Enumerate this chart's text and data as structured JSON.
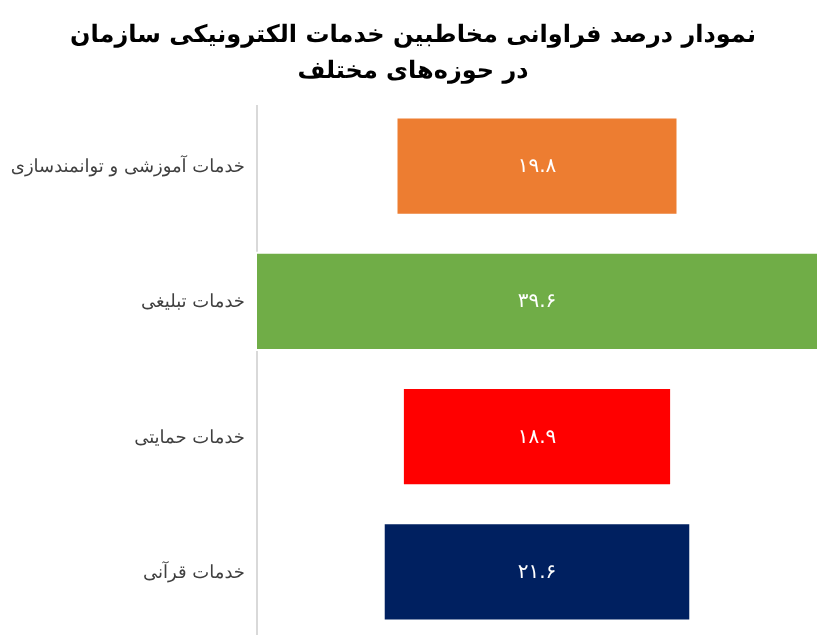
{
  "chart_data": {
    "type": "other",
    "title": [
      "نمودار درصد فراوانی مخاطبین خدمات الکترونیکی سازمان",
      "در حوزه‌های مختلف"
    ],
    "categories": [
      "خدمات آموزشی و توانمندسازی",
      "خدمات تبلیغی",
      "خدمات حمایتی",
      "خدمات قرآنی"
    ],
    "values": [
      19.8,
      39.6,
      18.9,
      21.6
    ],
    "colors": [
      "#ed7d31",
      "#70ad47",
      "#ff0000",
      "#002060"
    ],
    "value_labels": [
      "۱۹.۸",
      "۳۹.۶",
      "۱۸.۹",
      "۲۱.۶"
    ]
  }
}
